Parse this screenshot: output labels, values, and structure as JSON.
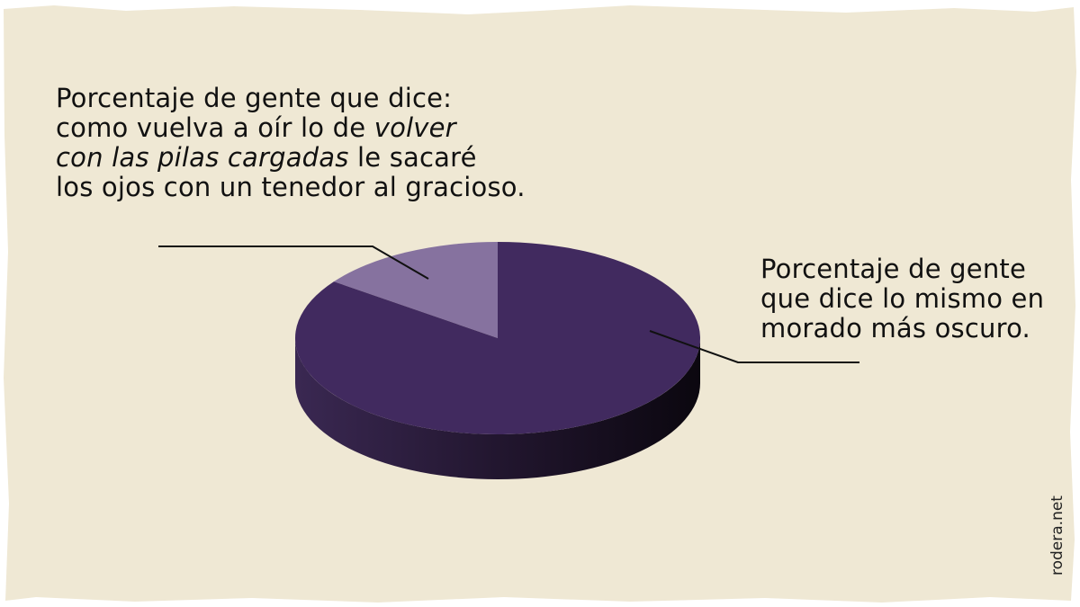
{
  "chart_data": {
    "type": "pie",
    "style": "3d",
    "slices": [
      {
        "label_lines": [
          "Porcentaje de gente que dice:",
          "como vuelva a oír lo de |volver|",
          "|con las pilas cargadas| le sacaré",
          "los ojos con un tenedor al gracioso."
        ],
        "value": 15,
        "color": "#86729f"
      },
      {
        "label_lines": [
          "Porcentaje de gente",
          "que dice lo mismo en",
          "morado más oscuro."
        ],
        "value": 85,
        "color": "#412a5f"
      }
    ],
    "legend": "none",
    "grid": false
  },
  "credit": "rodera.net",
  "colors": {
    "paper": "#efe8d4",
    "side_dark": "#140d1c"
  }
}
